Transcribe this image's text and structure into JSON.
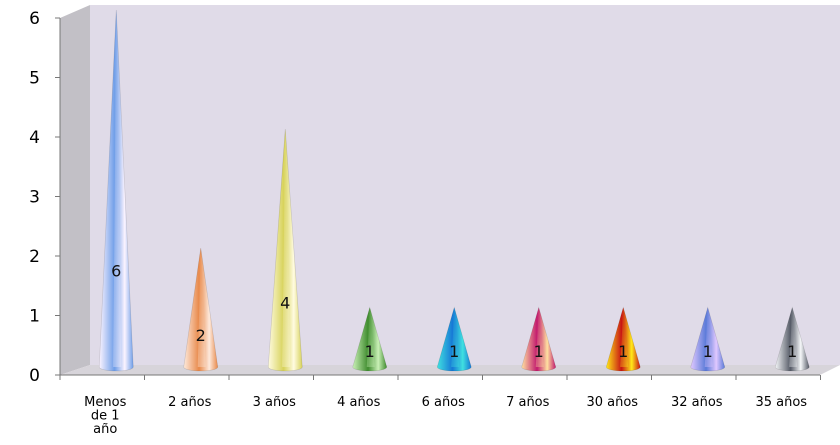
{
  "chart_data": {
    "type": "bar",
    "title": "",
    "xlabel": "",
    "ylabel": "",
    "categories": [
      "Menos de 1 año",
      "2 años",
      "3 años",
      "4 años",
      "6 años",
      "7 años",
      "30 años",
      "32 años",
      "35 años"
    ],
    "category_label_lines": [
      [
        "Menos",
        "de 1",
        "año"
      ],
      [
        "2 años"
      ],
      [
        "3 años"
      ],
      [
        "4 años"
      ],
      [
        "6 años"
      ],
      [
        "7 años"
      ],
      [
        "30 años"
      ],
      [
        "32 años"
      ],
      [
        "35 años"
      ]
    ],
    "values": [
      6,
      2,
      4,
      1,
      1,
      1,
      1,
      1,
      1
    ],
    "data_labels": [
      "6",
      "2",
      "4",
      "1",
      "1",
      "1",
      "1",
      "1",
      "1"
    ],
    "yticks": [
      "0",
      "1",
      "2",
      "3",
      "4",
      "5",
      "6"
    ],
    "ylim": [
      0,
      6
    ],
    "grid": false,
    "legend": "none",
    "bar_shape": "cone",
    "colors": {
      "wall": "#e0dbe8",
      "side_wall": "#c2c0c6",
      "floor": "#d7d4da",
      "cones": [
        [
          "#6f9ee8",
          "#fbf3ff"
        ],
        [
          "#e8894a",
          "#fde9dc"
        ],
        [
          "#d7d25a",
          "#fffbe0"
        ],
        [
          "#3f8c2e",
          "#c9f0b6"
        ],
        [
          "#1678d6",
          "#40e0e0"
        ],
        [
          "#c21a6e",
          "#ffe0a0"
        ],
        [
          "#c81414",
          "#ffe818"
        ],
        [
          "#5a7ad8",
          "#e0c8ff"
        ],
        [
          "#555a66",
          "#f4f6f8"
        ]
      ]
    }
  }
}
